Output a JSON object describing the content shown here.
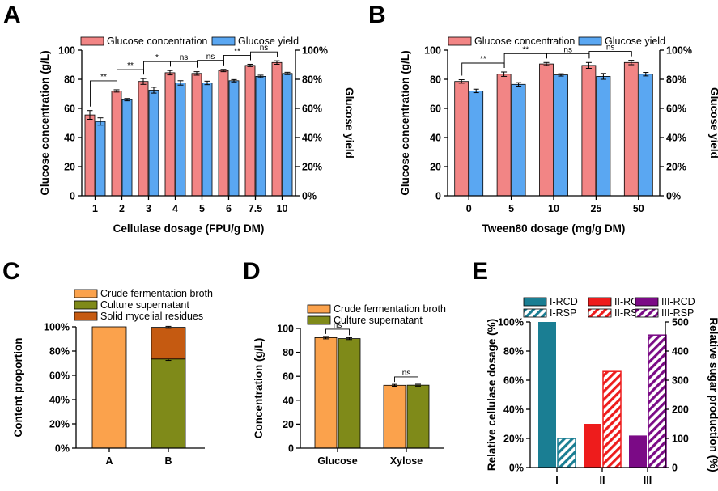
{
  "colors": {
    "conc": "#F28585",
    "yield": "#5AA7F2",
    "crude": "#FBA24C",
    "supernatant": "#7F8A19",
    "solid": "#C55A11",
    "rcd1": "#1A7E93",
    "rcd2": "#EE1C1C",
    "rcd3": "#7B0A86"
  },
  "chart_data": [
    {
      "id": "A",
      "letter": "A",
      "type": "bar",
      "categories": [
        "1",
        "2",
        "3",
        "4",
        "5",
        "6",
        "7.5",
        "10"
      ],
      "series": [
        {
          "name": "Glucose concentration",
          "color_key": "conc",
          "axis": "left",
          "values": [
            55.5,
            72,
            78.5,
            84.5,
            84,
            86,
            89.5,
            91.5
          ],
          "errors": [
            3,
            0.8,
            2,
            1.5,
            1.2,
            0.8,
            0.8,
            1.2
          ]
        },
        {
          "name": "Glucose yield",
          "color_key": "yield",
          "axis": "right",
          "values": [
            51,
            66,
            72.5,
            77.5,
            77.5,
            79,
            82,
            84
          ],
          "errors": [
            2.5,
            0.8,
            2,
            1.5,
            1.2,
            0.8,
            0.8,
            0.8
          ]
        }
      ],
      "xlabel": "Cellulase dosage (FPU/g DM)",
      "ylabel": "Glucose concentration (g/L)",
      "y2label": "Glucose yield",
      "ylim": [
        0,
        100
      ],
      "yticks": [
        "0",
        "20",
        "40",
        "60",
        "80",
        "100"
      ],
      "y2ticks": [
        "0%",
        "20%",
        "40%",
        "60%",
        "80%",
        "100%"
      ],
      "significance": [
        {
          "from": 0,
          "to": 1,
          "label": "**"
        },
        {
          "from": 1,
          "to": 2,
          "label": "**"
        },
        {
          "from": 2,
          "to": 3,
          "label": "*"
        },
        {
          "from": 3,
          "to": 4,
          "label": "ns"
        },
        {
          "from": 4,
          "to": 5,
          "label": "ns"
        },
        {
          "from": 5,
          "to": 6,
          "label": "**"
        },
        {
          "from": 6,
          "to": 7,
          "label": "ns"
        }
      ]
    },
    {
      "id": "B",
      "letter": "B",
      "type": "bar",
      "categories": [
        "0",
        "5",
        "10",
        "25",
        "50"
      ],
      "series": [
        {
          "name": "Glucose concentration",
          "color_key": "conc",
          "axis": "left",
          "values": [
            78.5,
            83.5,
            90.5,
            89.5,
            91.5
          ],
          "errors": [
            1.2,
            1.5,
            1,
            2,
            1.5
          ]
        },
        {
          "name": "Glucose yield",
          "color_key": "yield",
          "axis": "right",
          "values": [
            72,
            76.5,
            83,
            82,
            83.5
          ],
          "errors": [
            1.2,
            1.2,
            0.8,
            2,
            1.2
          ]
        }
      ],
      "xlabel": "Tween80 dosage (mg/g DM)",
      "ylabel": "Glucose concentration (g/L)",
      "y2label": "Glucose yield",
      "ylim": [
        0,
        100
      ],
      "yticks": [
        "0",
        "20",
        "40",
        "60",
        "80",
        "100"
      ],
      "y2ticks": [
        "0%",
        "20%",
        "40%",
        "60%",
        "80%",
        "100%"
      ],
      "significance": [
        {
          "from": 0,
          "to": 1,
          "label": "**"
        },
        {
          "from": 1,
          "to": 2,
          "label": "**"
        },
        {
          "from": 2,
          "to": 3,
          "label": "ns"
        },
        {
          "from": 3,
          "to": 4,
          "label": "ns"
        }
      ]
    },
    {
      "id": "C",
      "letter": "C",
      "type": "stacked-bar",
      "categories": [
        "A",
        "B"
      ],
      "series": [
        {
          "name": "Crude fermentation broth",
          "color_key": "crude",
          "values": [
            100,
            0
          ]
        },
        {
          "name": "Culture supernatant",
          "color_key": "supernatant",
          "values": [
            0,
            73.5
          ],
          "errors": [
            0,
            1.2
          ]
        },
        {
          "name": "Solid mycelial residues",
          "color_key": "solid",
          "values": [
            0,
            26.1
          ],
          "errors": [
            0,
            0.8
          ]
        }
      ],
      "xlabel": "",
      "ylabel": "Content proportion",
      "ylim": [
        0,
        100
      ],
      "yticks": [
        "0%",
        "20%",
        "40%",
        "60%",
        "80%",
        "100%"
      ]
    },
    {
      "id": "D",
      "letter": "D",
      "type": "bar",
      "categories": [
        "Glucose",
        "Xylose"
      ],
      "series": [
        {
          "name": "Crude fermentation broth",
          "color_key": "crude",
          "values": [
            92.3,
            52.5
          ],
          "errors": [
            1,
            0.8
          ]
        },
        {
          "name": "Culture supernatant",
          "color_key": "supernatant",
          "values": [
            91.5,
            52.6
          ],
          "errors": [
            0.8,
            0.8
          ]
        }
      ],
      "xlabel": "",
      "ylabel": "Concentration (g/L)",
      "ylim": [
        0,
        100
      ],
      "yticks": [
        "0",
        "20",
        "40",
        "60",
        "80",
        "100"
      ],
      "significance": [
        {
          "group": 0,
          "label": "ns"
        },
        {
          "group": 1,
          "label": "ns"
        }
      ]
    },
    {
      "id": "E",
      "letter": "E",
      "type": "bar",
      "categories": [
        "I",
        "II",
        "III"
      ],
      "rcd": {
        "axis": "left",
        "values": [
          100,
          30,
          22
        ],
        "color_keys": [
          "rcd1",
          "rcd2",
          "rcd3"
        ]
      },
      "rsp": {
        "axis": "right",
        "values": [
          100,
          330,
          455
        ],
        "color_keys": [
          "rcd1",
          "rcd2",
          "rcd3"
        ]
      },
      "legend": [
        "I-RCD",
        "II-RCD",
        "III-RCD",
        "I-RSP",
        "II-RSP",
        "III-RSP"
      ],
      "xlabel": "",
      "ylabel": "Relative cellulase dosage (%)",
      "y2label": "Relative sugar production (%)",
      "ylim": [
        0,
        100
      ],
      "y2lim": [
        0,
        500
      ],
      "yticks": [
        "0%",
        "20%",
        "40%",
        "60%",
        "80%",
        "100%"
      ],
      "y2ticks": [
        "0",
        "100",
        "200",
        "300",
        "400",
        "500"
      ]
    }
  ]
}
